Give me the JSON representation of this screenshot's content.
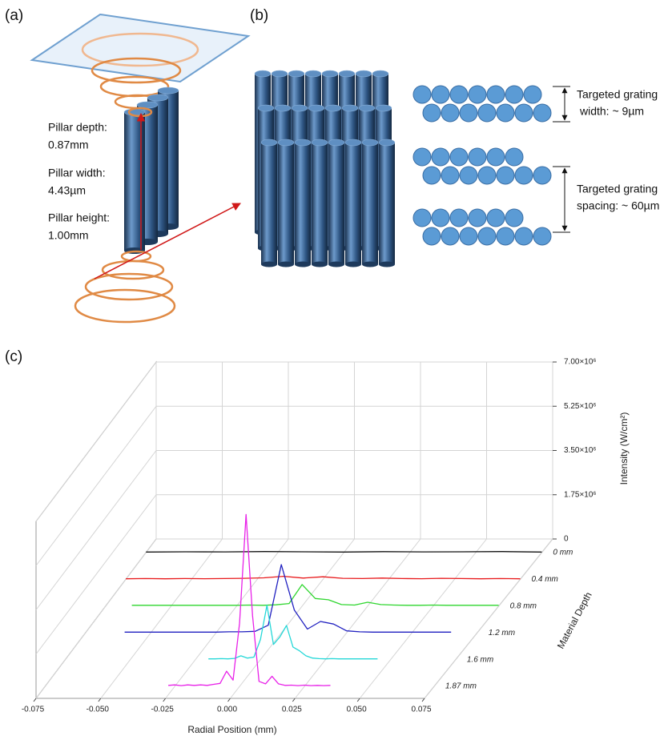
{
  "panels": {
    "a": {
      "label": "(a)",
      "annotations": [
        "Pillar depth:",
        "0.87mm",
        "Pillar width:",
        "4.43µm",
        "Pillar height:",
        "1.00mm"
      ]
    },
    "b": {
      "label": "(b)",
      "annotations": [
        "Targeted grating",
        "width: ~ 9µm",
        "Targeted grating",
        "spacing: ~ 60µm"
      ]
    },
    "c": {
      "label": "(c)"
    }
  },
  "chart_data": {
    "type": "waterfall",
    "x_label": "Radial Position (mm)",
    "depth_label": "Material Depth",
    "z_label": "Intensity (W/cm²)",
    "xlim": [
      -0.075,
      0.075
    ],
    "xticks": [
      -0.075,
      {
        "value": -0.05,
        "label": "-0.050"
      },
      -0.025,
      {
        "value": 0,
        "label": "0.000"
      },
      0.025,
      {
        "value": 0.05,
        "label": "0.050"
      },
      0.075
    ],
    "zlim": [
      0,
      7000000
    ],
    "zticks": [
      0,
      {
        "value": 1750000,
        "label": "1.75×10⁶"
      },
      {
        "value": 3500000,
        "label": "3.50×10⁶"
      },
      {
        "value": 5250000,
        "label": "5.25×10⁶"
      },
      {
        "value": 7000000,
        "label": "7.00×10⁶"
      }
    ],
    "grid": true,
    "series": [
      {
        "name": "0 mm",
        "color": "#111111",
        "x": [
          -0.075,
          -0.06,
          -0.045,
          -0.03,
          -0.015,
          0,
          0.015,
          0.03,
          0.045,
          0.06,
          0.075
        ],
        "values": [
          20000,
          30000,
          25000,
          40000,
          30000,
          20000,
          35000,
          25000,
          30000,
          40000,
          20000
        ]
      },
      {
        "name": "0.4 mm",
        "color": "#e8191b",
        "x": [
          -0.075,
          -0.0675,
          -0.06,
          -0.0525,
          -0.045,
          -0.0375,
          -0.03,
          -0.0225,
          -0.015,
          -0.0075,
          0,
          0.0075,
          0.015,
          0.0225,
          0.03,
          0.0375,
          0.045,
          0.0525,
          0.06,
          0.0675,
          0.075
        ],
        "values": [
          20000,
          30000,
          20000,
          30000,
          25000,
          30000,
          40000,
          60000,
          120000,
          50000,
          100000,
          40000,
          30000,
          50000,
          30000,
          25000,
          40000,
          30000,
          20000,
          30000,
          20000
        ]
      },
      {
        "name": "0.8 mm",
        "color": "#2fd62f",
        "x": [
          -0.065,
          -0.06,
          -0.055,
          -0.05,
          -0.045,
          -0.04,
          -0.035,
          -0.03,
          -0.025,
          -0.02,
          -0.015,
          -0.01,
          -0.005,
          0,
          0.005,
          0.01,
          0.015,
          0.02,
          0.025,
          0.03,
          0.035,
          0.04,
          0.045,
          0.05,
          0.055,
          0.06,
          0.065,
          0.07,
          0.075
        ],
        "values": [
          30000,
          30000,
          30000,
          30000,
          30000,
          30000,
          30000,
          30000,
          30000,
          40000,
          30000,
          50000,
          100000,
          850000,
          300000,
          250000,
          60000,
          40000,
          150000,
          60000,
          40000,
          30000,
          30000,
          40000,
          30000,
          30000,
          30000,
          30000,
          30000
        ]
      },
      {
        "name": "1.2 mm",
        "color": "#2020c0",
        "x": [
          -0.06,
          -0.055,
          -0.05,
          -0.045,
          -0.04,
          -0.035,
          -0.03,
          -0.025,
          -0.02,
          -0.015,
          -0.01,
          -0.005,
          0,
          0.005,
          0.01,
          0.015,
          0.02,
          0.025,
          0.03,
          0.035,
          0.04,
          0.045,
          0.05,
          0.055,
          0.06,
          0.065
        ],
        "values": [
          30000,
          30000,
          30000,
          30000,
          30000,
          30000,
          30000,
          30000,
          40000,
          40000,
          60000,
          300000,
          2700000,
          900000,
          150000,
          450000,
          350000,
          80000,
          40000,
          30000,
          30000,
          30000,
          30000,
          30000,
          30000,
          30000
        ]
      },
      {
        "name": "1.6 mm",
        "color": "#25d8d8",
        "x": [
          -0.02,
          -0.0175,
          -0.015,
          -0.0125,
          -0.01,
          -0.0075,
          -0.005,
          -0.0025,
          0,
          0.0025,
          0.005,
          0.0075,
          0.01,
          0.0125,
          0.015,
          0.0175,
          0.02,
          0.0225,
          0.025,
          0.0275,
          0.03,
          0.0325,
          0.035,
          0.0375,
          0.04,
          0.0425,
          0.045
        ],
        "values": [
          30000,
          30000,
          40000,
          30000,
          50000,
          150000,
          60000,
          100000,
          800000,
          2150000,
          600000,
          900000,
          1350000,
          500000,
          350000,
          150000,
          60000,
          40000,
          30000,
          40000,
          30000,
          30000,
          30000,
          30000,
          30000,
          30000,
          30000
        ]
      },
      {
        "name": "1.87 mm",
        "color": "#e822e8",
        "x": [
          -0.0275,
          -0.025,
          -0.0225,
          -0.02,
          -0.0175,
          -0.015,
          -0.0125,
          -0.01,
          -0.0075,
          -0.005,
          -0.0025,
          0,
          0.0025,
          0.005,
          0.0075,
          0.01,
          0.0125,
          0.015,
          0.0175,
          0.02,
          0.0225,
          0.025,
          0.0275,
          0.03,
          0.0325,
          0.035
        ],
        "values": [
          40000,
          60000,
          30000,
          60000,
          40000,
          60000,
          40000,
          80000,
          120000,
          600000,
          250000,
          2500000,
          6800000,
          2800000,
          200000,
          100000,
          400000,
          100000,
          40000,
          50000,
          30000,
          50000,
          30000,
          40000,
          30000,
          40000
        ]
      }
    ]
  }
}
